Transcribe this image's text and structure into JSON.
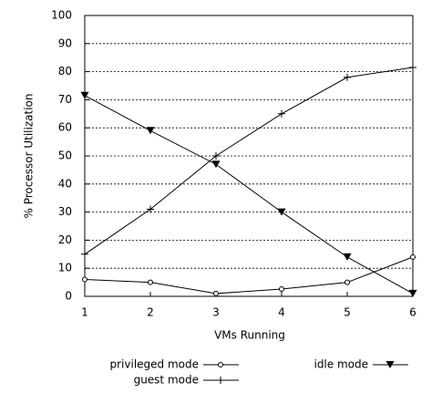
{
  "chart_data": {
    "type": "line",
    "x_label": "VMs Running",
    "y_label": "% Processor Utilization",
    "x": [
      1,
      2,
      3,
      4,
      5,
      6
    ],
    "series": [
      {
        "name": "privileged mode",
        "color": "#000000",
        "marker": "circle",
        "values": [
          6,
          5,
          1,
          2.6,
          5,
          14
        ]
      },
      {
        "name": "guest mode",
        "color": "#000000",
        "marker": "plus",
        "values": [
          15,
          31,
          50,
          65,
          78,
          81.5
        ]
      },
      {
        "name": "idle mode",
        "color": "#000000",
        "marker": "triangle-down",
        "values": [
          71.5,
          59,
          47,
          30,
          14,
          1
        ]
      }
    ],
    "xlim": [
      1,
      6
    ],
    "xticks": [
      1,
      2,
      3,
      4,
      5,
      6
    ],
    "ylim": [
      0,
      100
    ],
    "yticks": [
      0,
      10,
      20,
      30,
      40,
      50,
      60,
      70,
      80,
      90,
      100
    ],
    "grid": true,
    "legend_position": "bottom"
  }
}
